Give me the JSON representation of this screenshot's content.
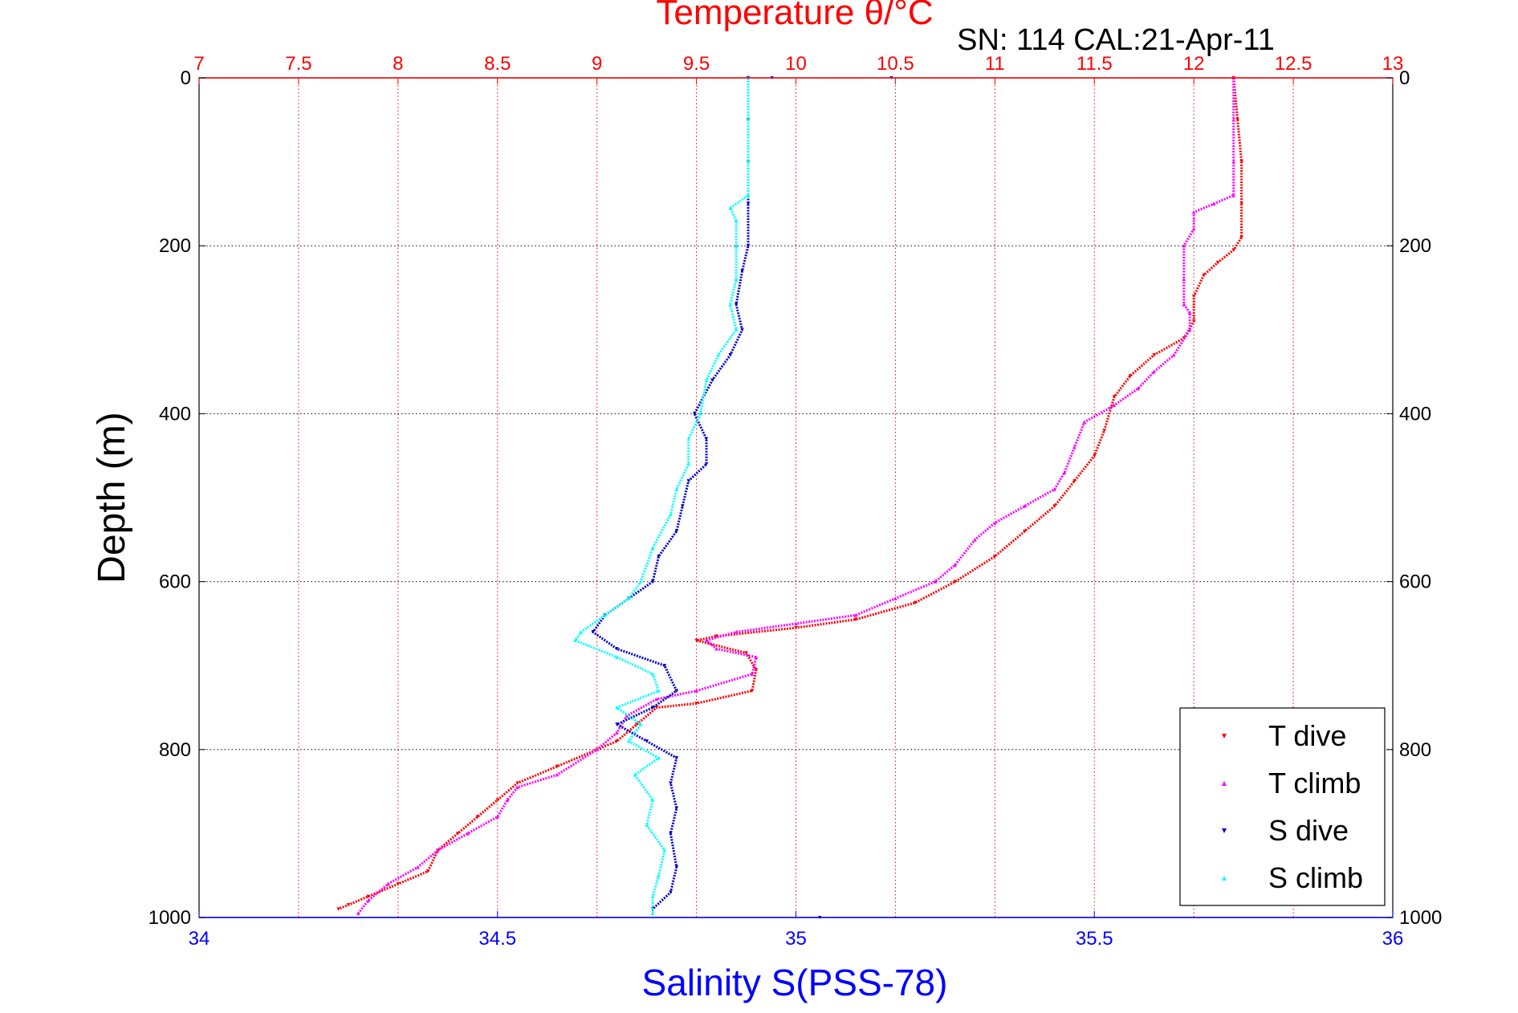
{
  "chart_data": {
    "type": "scatter",
    "title_top": "Temperature θ/°C",
    "title_right": "SN: 114  CAL:21-Apr-11",
    "ylabel": "Depth (m)",
    "xlabel_bottom": "Salinity S(PSS-78)",
    "y_axis": {
      "range": [
        0,
        1000
      ],
      "reversed": true,
      "ticks": [
        "0",
        "200",
        "400",
        "600",
        "800",
        "1000"
      ],
      "tick_values": [
        0,
        200,
        400,
        600,
        800,
        1000
      ]
    },
    "x_top": {
      "label": "Temperature θ/°C",
      "range": [
        7,
        13
      ],
      "ticks": [
        "7",
        "7.5",
        "8",
        "8.5",
        "9",
        "9.5",
        "10",
        "10.5",
        "11",
        "11.5",
        "12",
        "12.5",
        "13"
      ],
      "tick_values": [
        7,
        7.5,
        8,
        8.5,
        9,
        9.5,
        10,
        10.5,
        11,
        11.5,
        12,
        12.5,
        13
      ]
    },
    "x_bottom": {
      "label": "Salinity S(PSS-78)",
      "range": [
        34,
        36
      ],
      "ticks": [
        "34",
        "34.5",
        "35",
        "35.5",
        "36"
      ],
      "tick_values": [
        34,
        34.5,
        35,
        35.5,
        36
      ]
    },
    "grid": true,
    "legend_position": "bottom-right",
    "colors": {
      "t_dive": "#ff0000",
      "t_climb": "#ff00ff",
      "s_dive": "#0000cc",
      "s_climb": "#00ffff",
      "temp_axis": "#ff0000",
      "sal_axis": "#0000ff"
    },
    "series": [
      {
        "name": "T dive",
        "axis": "temperature",
        "marker": "triangle-down",
        "points": [
          [
            12.2,
            0
          ],
          [
            12.22,
            50
          ],
          [
            12.24,
            100
          ],
          [
            12.24,
            150
          ],
          [
            12.24,
            190
          ],
          [
            12.2,
            205
          ],
          [
            12.12,
            220
          ],
          [
            12.05,
            235
          ],
          [
            12.0,
            260
          ],
          [
            12.0,
            290
          ],
          [
            11.95,
            310
          ],
          [
            11.8,
            330
          ],
          [
            11.68,
            355
          ],
          [
            11.6,
            380
          ],
          [
            11.55,
            420
          ],
          [
            11.5,
            450
          ],
          [
            11.4,
            480
          ],
          [
            11.3,
            510
          ],
          [
            11.15,
            540
          ],
          [
            11.0,
            570
          ],
          [
            10.8,
            600
          ],
          [
            10.6,
            625
          ],
          [
            10.3,
            645
          ],
          [
            10.0,
            655
          ],
          [
            9.6,
            665
          ],
          [
            9.5,
            670
          ],
          [
            9.75,
            685
          ],
          [
            9.8,
            705
          ],
          [
            9.78,
            730
          ],
          [
            9.5,
            745
          ],
          [
            9.3,
            750
          ],
          [
            9.2,
            770
          ],
          [
            9.1,
            790
          ],
          [
            9.0,
            800
          ],
          [
            8.8,
            820
          ],
          [
            8.6,
            840
          ],
          [
            8.5,
            860
          ],
          [
            8.4,
            880
          ],
          [
            8.3,
            900
          ],
          [
            8.2,
            920
          ],
          [
            8.15,
            945
          ],
          [
            8.0,
            960
          ],
          [
            7.85,
            975
          ],
          [
            7.75,
            985
          ],
          [
            7.7,
            990
          ]
        ]
      },
      {
        "name": "T climb",
        "axis": "temperature",
        "marker": "triangle-up",
        "points": [
          [
            12.2,
            0
          ],
          [
            12.2,
            50
          ],
          [
            12.2,
            100
          ],
          [
            12.2,
            140
          ],
          [
            12.1,
            150
          ],
          [
            12.0,
            160
          ],
          [
            12.0,
            180
          ],
          [
            11.95,
            200
          ],
          [
            11.95,
            240
          ],
          [
            11.95,
            270
          ],
          [
            11.98,
            280
          ],
          [
            11.98,
            300
          ],
          [
            11.9,
            330
          ],
          [
            11.8,
            350
          ],
          [
            11.72,
            370
          ],
          [
            11.6,
            390
          ],
          [
            11.45,
            410
          ],
          [
            11.4,
            440
          ],
          [
            11.35,
            470
          ],
          [
            11.3,
            490
          ],
          [
            11.15,
            510
          ],
          [
            11.0,
            530
          ],
          [
            10.9,
            550
          ],
          [
            10.8,
            580
          ],
          [
            10.7,
            600
          ],
          [
            10.5,
            620
          ],
          [
            10.3,
            640
          ],
          [
            10.0,
            650
          ],
          [
            9.7,
            660
          ],
          [
            9.55,
            670
          ],
          [
            9.6,
            680
          ],
          [
            9.8,
            690
          ],
          [
            9.78,
            710
          ],
          [
            9.5,
            730
          ],
          [
            9.3,
            740
          ],
          [
            9.15,
            760
          ],
          [
            9.1,
            780
          ],
          [
            9.0,
            800
          ],
          [
            8.8,
            830
          ],
          [
            8.6,
            845
          ],
          [
            8.55,
            860
          ],
          [
            8.5,
            880
          ],
          [
            8.35,
            900
          ],
          [
            8.2,
            920
          ],
          [
            8.1,
            940
          ],
          [
            7.95,
            960
          ],
          [
            7.85,
            980
          ],
          [
            7.8,
            995
          ]
        ]
      },
      {
        "name": "S dive",
        "axis": "salinity",
        "marker": "triangle-down",
        "points": [
          [
            34.92,
            0
          ],
          [
            34.92,
            50
          ],
          [
            34.92,
            100
          ],
          [
            34.92,
            150
          ],
          [
            34.92,
            200
          ],
          [
            34.91,
            230
          ],
          [
            34.9,
            270
          ],
          [
            34.91,
            300
          ],
          [
            34.89,
            330
          ],
          [
            34.86,
            360
          ],
          [
            34.83,
            400
          ],
          [
            34.85,
            430
          ],
          [
            34.85,
            460
          ],
          [
            34.82,
            480
          ],
          [
            34.81,
            510
          ],
          [
            34.8,
            540
          ],
          [
            34.77,
            570
          ],
          [
            34.76,
            600
          ],
          [
            34.72,
            620
          ],
          [
            34.68,
            640
          ],
          [
            34.66,
            660
          ],
          [
            34.7,
            680
          ],
          [
            34.78,
            700
          ],
          [
            34.8,
            730
          ],
          [
            34.76,
            750
          ],
          [
            34.7,
            770
          ],
          [
            34.75,
            790
          ],
          [
            34.8,
            810
          ],
          [
            34.79,
            840
          ],
          [
            34.8,
            870
          ],
          [
            34.79,
            900
          ],
          [
            34.8,
            940
          ],
          [
            34.79,
            970
          ],
          [
            34.76,
            990
          ]
        ]
      },
      {
        "name": "S climb",
        "axis": "salinity",
        "marker": "triangle-up",
        "points": [
          [
            34.92,
            0
          ],
          [
            34.92,
            50
          ],
          [
            34.92,
            100
          ],
          [
            34.92,
            140
          ],
          [
            34.89,
            155
          ],
          [
            34.9,
            170
          ],
          [
            34.9,
            200
          ],
          [
            34.9,
            240
          ],
          [
            34.89,
            270
          ],
          [
            34.9,
            300
          ],
          [
            34.87,
            330
          ],
          [
            34.85,
            360
          ],
          [
            34.84,
            400
          ],
          [
            34.82,
            430
          ],
          [
            34.82,
            460
          ],
          [
            34.8,
            490
          ],
          [
            34.79,
            520
          ],
          [
            34.76,
            560
          ],
          [
            34.74,
            600
          ],
          [
            34.72,
            620
          ],
          [
            34.68,
            640
          ],
          [
            34.64,
            660
          ],
          [
            34.63,
            670
          ],
          [
            34.7,
            690
          ],
          [
            34.76,
            710
          ],
          [
            34.77,
            730
          ],
          [
            34.7,
            750
          ],
          [
            34.74,
            770
          ],
          [
            34.72,
            790
          ],
          [
            34.77,
            810
          ],
          [
            34.73,
            830
          ],
          [
            34.76,
            860
          ],
          [
            34.75,
            890
          ],
          [
            34.78,
            920
          ],
          [
            34.77,
            950
          ],
          [
            34.76,
            975
          ],
          [
            34.76,
            995
          ]
        ]
      }
    ],
    "stray_points": [
      {
        "series": "S dive",
        "axis": "salinity",
        "points": [
          [
            34.96,
            0
          ],
          [
            35.16,
            0
          ],
          [
            35.04,
            1000
          ]
        ]
      }
    ]
  }
}
